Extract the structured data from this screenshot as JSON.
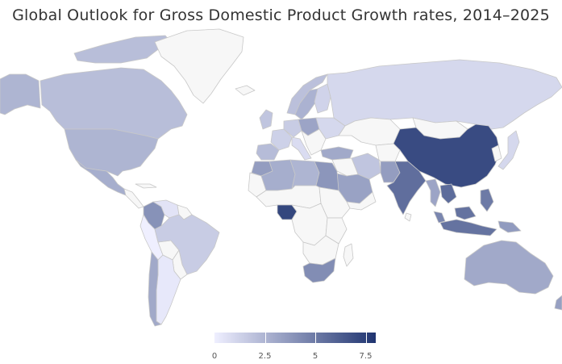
{
  "title": "Global Outlook for Gross Domestic Product Growth rates, 2014–2025",
  "colors": {
    "low": "#efefff",
    "high": "#1f3470",
    "no_data": "#f7f7f7",
    "border": "#c8c8c8"
  },
  "legend": {
    "min": 0,
    "max": 8,
    "ticks": [
      {
        "value": 0,
        "label": "0"
      },
      {
        "value": 2.5,
        "label": "2.5"
      },
      {
        "value": 5,
        "label": "5"
      },
      {
        "value": 7.5,
        "label": "7.5"
      }
    ]
  },
  "countries": [
    {
      "name": "Canada",
      "value": 2.1
    },
    {
      "name": "United States",
      "value": 2.5
    },
    {
      "name": "Mexico",
      "value": 2.8
    },
    {
      "name": "Colombia",
      "value": 4.0
    },
    {
      "name": "Venezuela",
      "value": 0.5
    },
    {
      "name": "Brazil",
      "value": 1.5
    },
    {
      "name": "Argentina",
      "value": 0.3
    },
    {
      "name": "Chile",
      "value": 3.0
    },
    {
      "name": "Peru",
      "value": 0.0
    },
    {
      "name": "Greenland",
      "value": null
    },
    {
      "name": "United Kingdom",
      "value": 1.8
    },
    {
      "name": "Norway",
      "value": 2.0
    },
    {
      "name": "Sweden",
      "value": 2.6
    },
    {
      "name": "Finland",
      "value": 1.2
    },
    {
      "name": "Poland",
      "value": 3.2
    },
    {
      "name": "Germany",
      "value": 1.5
    },
    {
      "name": "France",
      "value": 1.3
    },
    {
      "name": "Spain",
      "value": 2.2
    },
    {
      "name": "Italy",
      "value": 0.8
    },
    {
      "name": "Ukraine",
      "value": 1.0
    },
    {
      "name": "Turkey",
      "value": 3.0
    },
    {
      "name": "Russia",
      "value": 1.0
    },
    {
      "name": "Kazakhstan",
      "value": null
    },
    {
      "name": "Mongolia",
      "value": null
    },
    {
      "name": "China",
      "value": 7.0
    },
    {
      "name": "Japan",
      "value": 1.0
    },
    {
      "name": "India",
      "value": 5.5
    },
    {
      "name": "Pakistan",
      "value": 3.5
    },
    {
      "name": "Iran",
      "value": 1.8
    },
    {
      "name": "Saudi Arabia",
      "value": 3.3
    },
    {
      "name": "Egypt",
      "value": 3.8
    },
    {
      "name": "Libya",
      "value": 2.5
    },
    {
      "name": "Algeria",
      "value": 2.8
    },
    {
      "name": "Morocco",
      "value": 3.5
    },
    {
      "name": "Nigeria",
      "value": 7.2
    },
    {
      "name": "South Africa",
      "value": 4.2
    },
    {
      "name": "Thailand",
      "value": 3.2
    },
    {
      "name": "Vietnam",
      "value": 5.6
    },
    {
      "name": "Malaysia",
      "value": 4.5
    },
    {
      "name": "Indonesia",
      "value": 5.3
    },
    {
      "name": "Philippines",
      "value": 5.0
    },
    {
      "name": "Papua New Guinea",
      "value": 3.6
    },
    {
      "name": "Australia",
      "value": 3.0
    },
    {
      "name": "New Zealand",
      "value": 3.4
    }
  ]
}
